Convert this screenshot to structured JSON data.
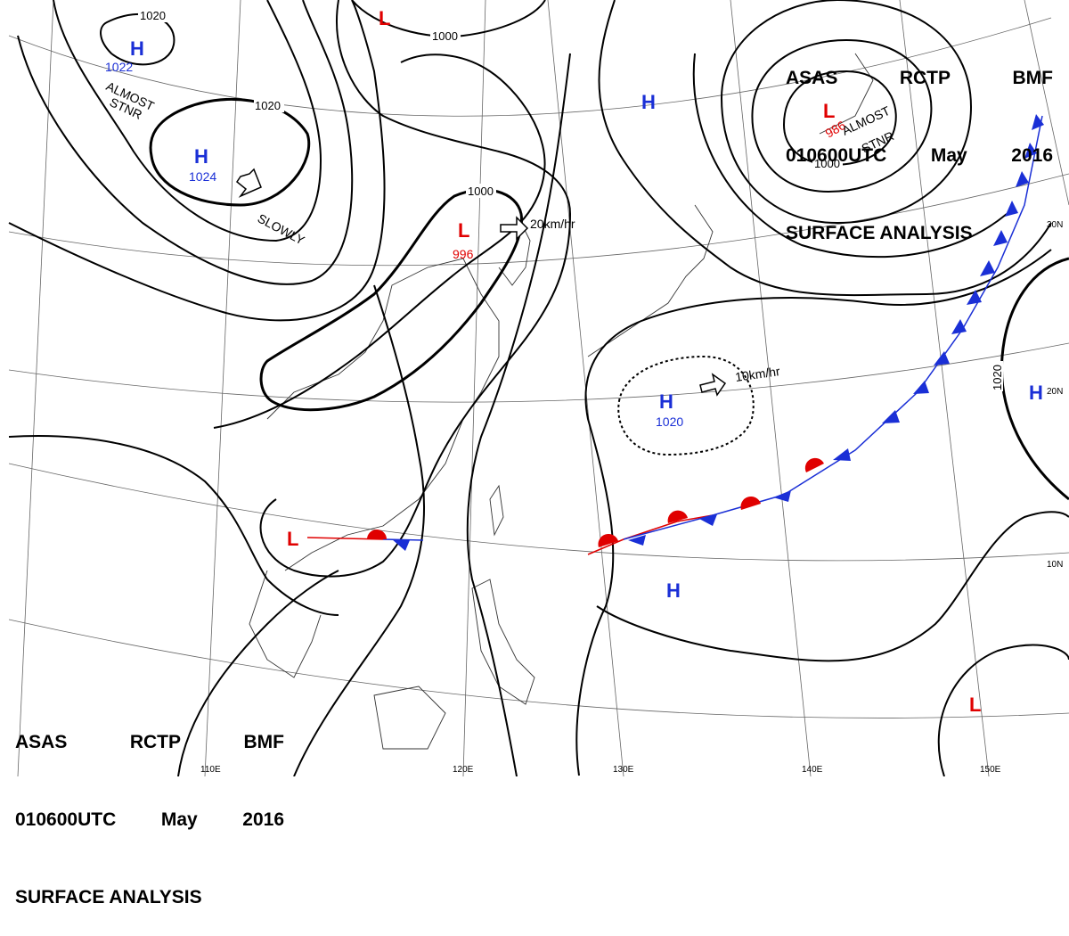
{
  "header": {
    "product": [
      "ASAS",
      "RCTP",
      "BMF"
    ],
    "datetime": [
      "010600UTC",
      "May",
      "2016"
    ],
    "title": "SURFACE ANALYSIS"
  },
  "colors": {
    "high": "#1a2fd6",
    "low": "#e00000",
    "warm_front": "#e00000",
    "cold_front": "#1a2fd6",
    "isobar": "#000000",
    "grid": "#555555",
    "coast": "#333333"
  },
  "systems": {
    "highs": [
      {
        "letter": "H",
        "pressure": "1022",
        "note_lines": [
          "ALMOST",
          "STNR"
        ]
      },
      {
        "letter": "H",
        "pressure": "1024",
        "motion": "SLOWLY"
      },
      {
        "letter": "H",
        "pressure": ""
      },
      {
        "letter": "H",
        "pressure": "1020",
        "motion": "10km/hr"
      },
      {
        "letter": "H",
        "pressure": ""
      },
      {
        "letter": "H",
        "pressure": ""
      }
    ],
    "lows": [
      {
        "letter": "L",
        "pressure": ""
      },
      {
        "letter": "L",
        "pressure": "996",
        "motion": "20km/hr"
      },
      {
        "letter": "L",
        "pressure": "986",
        "note_lines": [
          "ALMOST",
          "STNR"
        ]
      },
      {
        "letter": "L",
        "pressure": ""
      },
      {
        "letter": "L",
        "pressure": ""
      }
    ]
  },
  "isobar_labels": [
    "1020",
    "1020",
    "1000",
    "1000",
    "1000",
    "1020"
  ],
  "lat_labels": [
    "30N",
    "20N",
    "10N"
  ],
  "lon_labels": [
    "110E",
    "120E",
    "130E",
    "140E",
    "150E"
  ]
}
